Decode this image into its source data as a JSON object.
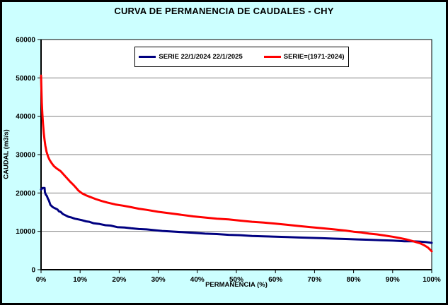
{
  "title": "CURVA DE PERMANENCIA DE CAUDALES - CHY",
  "colors": {
    "background": "#CCFFFF",
    "plot_background": "#FFFFFF",
    "gridline": "#808080",
    "axis": "#000000",
    "series1": "#000080",
    "series2": "#FF0000"
  },
  "legend": {
    "items": [
      {
        "label": "SERIE 22/1/2024 22/1/2025",
        "color": "#000080"
      },
      {
        "label": "SERIE=(1971-2024)",
        "color": "#FF0000"
      }
    ]
  },
  "axes": {
    "xlabel": "PERMANENCIA (%)",
    "ylabel": "CAUDAL (m3/s)"
  },
  "chart_data": {
    "type": "line",
    "title": "CURVA DE PERMANENCIA DE CAUDALES - CHY",
    "xlabel": "PERMANENCIA (%)",
    "ylabel": "CAUDAL (m3/s)",
    "xlim": [
      0,
      100
    ],
    "ylim": [
      0,
      60000
    ],
    "x_ticks": [
      "0%",
      "10%",
      "20%",
      "30%",
      "40%",
      "50%",
      "60%",
      "70%",
      "80%",
      "90%",
      "100%"
    ],
    "y_ticks": [
      "0",
      "10000",
      "20000",
      "30000",
      "40000",
      "50000",
      "60000"
    ],
    "grid": "horizontal-only",
    "legend_position": "top-center-inside",
    "series": [
      {
        "name": "SERIE 22/1/2024 22/1/2025",
        "color": "#000080",
        "points": [
          [
            0,
            20900
          ],
          [
            0.4,
            21300
          ],
          [
            0.9,
            21300
          ],
          [
            1.0,
            20200
          ],
          [
            1.2,
            19600
          ],
          [
            1.5,
            19200
          ],
          [
            1.8,
            18400
          ],
          [
            2.0,
            18100
          ],
          [
            2.4,
            16900
          ],
          [
            3.0,
            16300
          ],
          [
            3.6,
            16000
          ],
          [
            4.2,
            15700
          ],
          [
            4.6,
            15200
          ],
          [
            5.0,
            15100
          ],
          [
            5.6,
            14500
          ],
          [
            6.2,
            14200
          ],
          [
            7.0,
            13800
          ],
          [
            7.8,
            13600
          ],
          [
            8.6,
            13300
          ],
          [
            9.6,
            13100
          ],
          [
            10.5,
            12900
          ],
          [
            11.5,
            12600
          ],
          [
            12.3,
            12500
          ],
          [
            13.5,
            12100
          ],
          [
            15.0,
            11900
          ],
          [
            16.5,
            11600
          ],
          [
            17.8,
            11500
          ],
          [
            19.5,
            11100
          ],
          [
            21.4,
            11000
          ],
          [
            23,
            10800
          ],
          [
            25,
            10600
          ],
          [
            27,
            10500
          ],
          [
            29,
            10300
          ],
          [
            31,
            10100
          ],
          [
            33,
            10000
          ],
          [
            36,
            9800
          ],
          [
            39,
            9600
          ],
          [
            42,
            9400
          ],
          [
            45,
            9300
          ],
          [
            48,
            9100
          ],
          [
            51,
            9000
          ],
          [
            54,
            8800
          ],
          [
            57,
            8700
          ],
          [
            60,
            8600
          ],
          [
            63,
            8500
          ],
          [
            66,
            8400
          ],
          [
            69,
            8300
          ],
          [
            72,
            8200
          ],
          [
            75,
            8100
          ],
          [
            78,
            8000
          ],
          [
            81,
            7900
          ],
          [
            84,
            7800
          ],
          [
            87,
            7700
          ],
          [
            90,
            7600
          ],
          [
            93,
            7400
          ],
          [
            95,
            7400
          ],
          [
            97,
            7300
          ],
          [
            98.5,
            7200
          ],
          [
            100,
            7000
          ]
        ]
      },
      {
        "name": "SERIE=(1971-2024)",
        "color": "#FF0000",
        "points": [
          [
            0,
            50600
          ],
          [
            0.1,
            46500
          ],
          [
            0.2,
            43500
          ],
          [
            0.35,
            40500
          ],
          [
            0.5,
            38000
          ],
          [
            0.7,
            35500
          ],
          [
            0.9,
            33800
          ],
          [
            1.1,
            32300
          ],
          [
            1.4,
            30800
          ],
          [
            1.8,
            29500
          ],
          [
            2.2,
            28600
          ],
          [
            2.7,
            27800
          ],
          [
            3.3,
            27000
          ],
          [
            4.0,
            26400
          ],
          [
            5.0,
            25700
          ],
          [
            5.8,
            24800
          ],
          [
            6.6,
            23900
          ],
          [
            7.4,
            23000
          ],
          [
            8.2,
            22200
          ],
          [
            9.0,
            21300
          ],
          [
            9.6,
            20600
          ],
          [
            10.5,
            19900
          ],
          [
            11.5,
            19400
          ],
          [
            12.5,
            19000
          ],
          [
            14,
            18400
          ],
          [
            15.5,
            17900
          ],
          [
            17,
            17500
          ],
          [
            19,
            17000
          ],
          [
            21,
            16700
          ],
          [
            23,
            16300
          ],
          [
            25,
            15900
          ],
          [
            27,
            15600
          ],
          [
            30,
            15100
          ],
          [
            33,
            14700
          ],
          [
            36,
            14300
          ],
          [
            39,
            13900
          ],
          [
            42,
            13600
          ],
          [
            45,
            13300
          ],
          [
            48,
            13100
          ],
          [
            51,
            12800
          ],
          [
            54,
            12500
          ],
          [
            57,
            12300
          ],
          [
            60,
            12000
          ],
          [
            63,
            11700
          ],
          [
            66,
            11400
          ],
          [
            69,
            11100
          ],
          [
            72,
            10800
          ],
          [
            75,
            10500
          ],
          [
            78,
            10200
          ],
          [
            80,
            9900
          ],
          [
            82,
            9700
          ],
          [
            84,
            9400
          ],
          [
            86,
            9200
          ],
          [
            88,
            8900
          ],
          [
            90,
            8600
          ],
          [
            92,
            8200
          ],
          [
            93.5,
            7900
          ],
          [
            95,
            7500
          ],
          [
            96,
            7200
          ],
          [
            97,
            6900
          ],
          [
            98,
            6400
          ],
          [
            99,
            5800
          ],
          [
            99.6,
            5200
          ],
          [
            100,
            4800
          ]
        ]
      }
    ]
  }
}
